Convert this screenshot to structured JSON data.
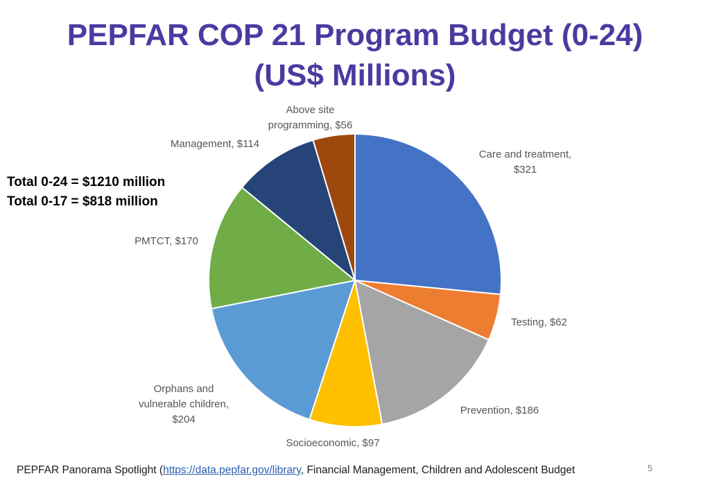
{
  "title_line1": "PEPFAR COP 21 Program Budget (0-24)",
  "title_line2": "(US$ Millions)",
  "totals": {
    "line1": "Total 0-24 = $1210 million",
    "line2": "Total 0-17 = $818 million"
  },
  "chart_data": {
    "type": "pie",
    "title": "PEPFAR COP 21 Program Budget (0-24) (US$ Millions)",
    "start": "12 o'clock",
    "direction": "clockwise",
    "slices": [
      {
        "label": "Care and treatment, $321",
        "value": 321,
        "color": "#4472c4"
      },
      {
        "label": "Testing, $62",
        "value": 62,
        "color": "#ed7d31"
      },
      {
        "label": "Prevention, $186",
        "value": 186,
        "color": "#a5a5a5"
      },
      {
        "label": "Socioeconomic, $97",
        "value": 97,
        "color": "#ffc000"
      },
      {
        "label": "Orphans and vulnerable children, $204",
        "value": 204,
        "color": "#5b9bd5"
      },
      {
        "label": "PMTCT, $170",
        "value": 170,
        "color": "#70ad47"
      },
      {
        "label": "Management, $114",
        "value": 114,
        "color": "#264478"
      },
      {
        "label": "Above site programming, $56",
        "value": 56,
        "color": "#9e480e"
      }
    ]
  },
  "labels": {
    "care": "Care and treatment,\n$321",
    "testing": "Testing, $62",
    "prevention": "Prevention, $186",
    "socio": "Socioeconomic, $97",
    "ovc": "Orphans and\nvulnerable children,\n$204",
    "pmtct": "PMTCT, $170",
    "management": "Management, $114",
    "above": "Above site\nprogramming, $56"
  },
  "footer": {
    "prefix": "PEPFAR Panorama Spotlight (",
    "link": "https://data.pepfar.gov/library",
    "suffix": ", Financial Management, Children and Adolescent Budget"
  },
  "page_number": "5"
}
